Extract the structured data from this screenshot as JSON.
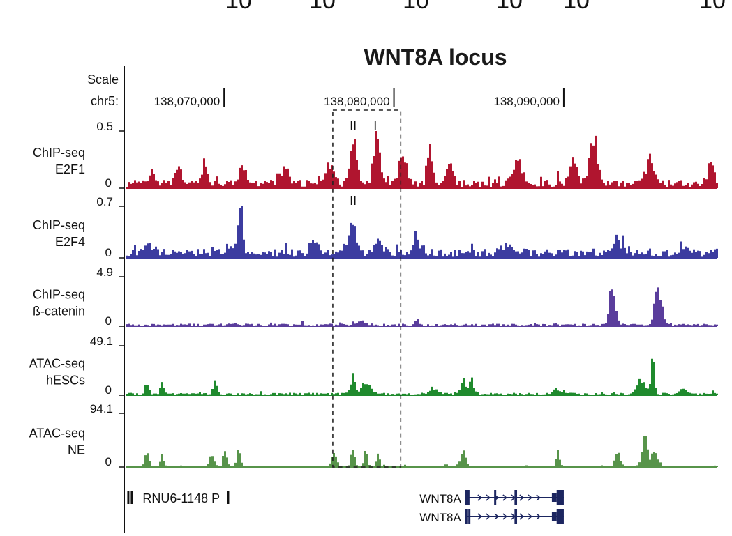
{
  "figure": {
    "top_clipped_labels": [
      "10",
      "10",
      "10",
      "10",
      "10",
      "10"
    ],
    "title": "WNT8A locus",
    "scale_label": "Scale",
    "chrom_label": "chr5:"
  },
  "chart_data": {
    "type": "area",
    "title": "WNT8A locus",
    "chromosome": "chr5",
    "x_range": [
      138064200,
      138099000
    ],
    "x_ticks": [
      {
        "pos": 138070000,
        "label": "138,070,000"
      },
      {
        "pos": 138080000,
        "label": "138,080,000"
      },
      {
        "pos": 138090000,
        "label": "138,090,000"
      }
    ],
    "highlight_region": {
      "start": 138076400,
      "end": 138080400
    },
    "annotations": [
      {
        "track": 0,
        "pos": 138077600,
        "label": "II"
      },
      {
        "track": 0,
        "pos": 138078900,
        "label": "I"
      },
      {
        "track": 1,
        "pos": 138077600,
        "label": "II"
      }
    ],
    "series": [
      {
        "name": "ChIP-seq E2F1",
        "label_lines": [
          "ChIP-seq",
          "E2F1"
        ],
        "color": "#b0152f",
        "ymax": 0.5,
        "ymax_label": "0.5",
        "ymin_label": "0",
        "baseline": 0.03,
        "peaks": [
          {
            "pos": 138065700,
            "height": 0.14,
            "width": 200
          },
          {
            "pos": 138067200,
            "height": 0.17,
            "width": 250
          },
          {
            "pos": 138068800,
            "height": 0.22,
            "width": 200
          },
          {
            "pos": 138071000,
            "height": 0.16,
            "width": 250
          },
          {
            "pos": 138073500,
            "height": 0.16,
            "width": 300
          },
          {
            "pos": 138076200,
            "height": 0.19,
            "width": 300
          },
          {
            "pos": 138077600,
            "height": 0.38,
            "width": 300
          },
          {
            "pos": 138078900,
            "height": 0.47,
            "width": 250
          },
          {
            "pos": 138080400,
            "height": 0.24,
            "width": 300
          },
          {
            "pos": 138082100,
            "height": 0.22,
            "width": 250
          },
          {
            "pos": 138083200,
            "height": 0.17,
            "width": 300
          },
          {
            "pos": 138087200,
            "height": 0.2,
            "width": 400
          },
          {
            "pos": 138090500,
            "height": 0.2,
            "width": 300
          },
          {
            "pos": 138091700,
            "height": 0.39,
            "width": 300
          },
          {
            "pos": 138095000,
            "height": 0.2,
            "width": 400
          },
          {
            "pos": 138098600,
            "height": 0.2,
            "width": 250
          }
        ]
      },
      {
        "name": "ChIP-seq E2F4",
        "label_lines": [
          "ChIP-seq",
          "E2F4"
        ],
        "color": "#3c3ca0",
        "ymax": 0.7,
        "ymax_label": "0.7",
        "ymin_label": "0",
        "baseline": 0.05,
        "peaks": [
          {
            "pos": 138070900,
            "height": 0.62,
            "width": 200
          },
          {
            "pos": 138070300,
            "height": 0.12,
            "width": 300
          },
          {
            "pos": 138065500,
            "height": 0.1,
            "width": 400
          },
          {
            "pos": 138075300,
            "height": 0.15,
            "width": 400
          },
          {
            "pos": 138077500,
            "height": 0.47,
            "width": 250
          },
          {
            "pos": 138079000,
            "height": 0.16,
            "width": 400
          },
          {
            "pos": 138081300,
            "height": 0.14,
            "width": 300
          },
          {
            "pos": 138086500,
            "height": 0.1,
            "width": 400
          },
          {
            "pos": 138093100,
            "height": 0.13,
            "width": 400
          },
          {
            "pos": 138097000,
            "height": 0.12,
            "width": 300
          }
        ]
      },
      {
        "name": "ChIP-seq ß-catenin",
        "label_lines": [
          "ChIP-seq",
          "ß-catenin"
        ],
        "color": "#5a3d9c",
        "ymax": 4.9,
        "ymax_label": "4.9",
        "ymin_label": "0",
        "baseline": 0.1,
        "peaks": [
          {
            "pos": 138092800,
            "height": 4.3,
            "width": 230
          },
          {
            "pos": 138095500,
            "height": 4.1,
            "width": 260
          },
          {
            "pos": 138078000,
            "height": 0.4,
            "width": 400
          },
          {
            "pos": 138081300,
            "height": 0.6,
            "width": 120
          },
          {
            "pos": 138070400,
            "height": 0.2,
            "width": 300
          }
        ]
      },
      {
        "name": "ATAC-seq hESCs",
        "label_lines": [
          "ATAC-seq",
          "hESCs"
        ],
        "color": "#1f8a2d",
        "ymax": 49.1,
        "ymax_label": "49.1",
        "ymin_label": "0",
        "baseline": 1.0,
        "peaks": [
          {
            "pos": 138065400,
            "height": 11,
            "width": 150
          },
          {
            "pos": 138066300,
            "height": 13,
            "width": 150
          },
          {
            "pos": 138069400,
            "height": 12,
            "width": 150
          },
          {
            "pos": 138077500,
            "height": 16,
            "width": 200
          },
          {
            "pos": 138078300,
            "height": 12,
            "width": 350
          },
          {
            "pos": 138084000,
            "height": 14,
            "width": 200
          },
          {
            "pos": 138084500,
            "height": 13,
            "width": 200
          },
          {
            "pos": 138082300,
            "height": 5,
            "width": 300
          },
          {
            "pos": 138089500,
            "height": 5,
            "width": 250
          },
          {
            "pos": 138095200,
            "height": 35,
            "width": 150
          },
          {
            "pos": 138094500,
            "height": 12,
            "width": 350
          },
          {
            "pos": 138097000,
            "height": 4,
            "width": 300
          }
        ]
      },
      {
        "name": "ATAC-seq NE",
        "label_lines": [
          "ATAC-seq",
          "NE"
        ],
        "color": "#57944a",
        "ymax": 94.1,
        "ymax_label": "94.1",
        "ymin_label": "0",
        "baseline": 1.0,
        "peaks": [
          {
            "pos": 138065400,
            "height": 24,
            "width": 150
          },
          {
            "pos": 138066300,
            "height": 18,
            "width": 150
          },
          {
            "pos": 138069200,
            "height": 17,
            "width": 200
          },
          {
            "pos": 138070000,
            "height": 34,
            "width": 150
          },
          {
            "pos": 138070800,
            "height": 29,
            "width": 150
          },
          {
            "pos": 138076400,
            "height": 20,
            "width": 200
          },
          {
            "pos": 138077500,
            "height": 32,
            "width": 150
          },
          {
            "pos": 138078300,
            "height": 24,
            "width": 150
          },
          {
            "pos": 138079000,
            "height": 20,
            "width": 150
          },
          {
            "pos": 138084000,
            "height": 26,
            "width": 200
          },
          {
            "pos": 138089600,
            "height": 23,
            "width": 150
          },
          {
            "pos": 138093100,
            "height": 25,
            "width": 200
          },
          {
            "pos": 138094700,
            "height": 62,
            "width": 200
          },
          {
            "pos": 138095300,
            "height": 30,
            "width": 250
          }
        ]
      }
    ],
    "genes": [
      {
        "name": "RNU6-1148 P",
        "start": 138064300,
        "end": 138064700,
        "strand": ".",
        "exons": [
          [
            138064300,
            138064450
          ]
        ]
      },
      {
        "name": "WNT8A",
        "start": 138084200,
        "end": 138090000,
        "strand": "+",
        "exons": [
          [
            138084200,
            138084450
          ],
          [
            138085900,
            138086000
          ],
          [
            138087100,
            138087250
          ],
          [
            138089300,
            138090000
          ]
        ]
      },
      {
        "name": "WNT8A",
        "start": 138084200,
        "end": 138090000,
        "strand": "+",
        "exons": [
          [
            138084200,
            138084300
          ],
          [
            138084380,
            138084450
          ],
          [
            138087100,
            138087250
          ],
          [
            138089300,
            138090000
          ]
        ]
      }
    ]
  }
}
